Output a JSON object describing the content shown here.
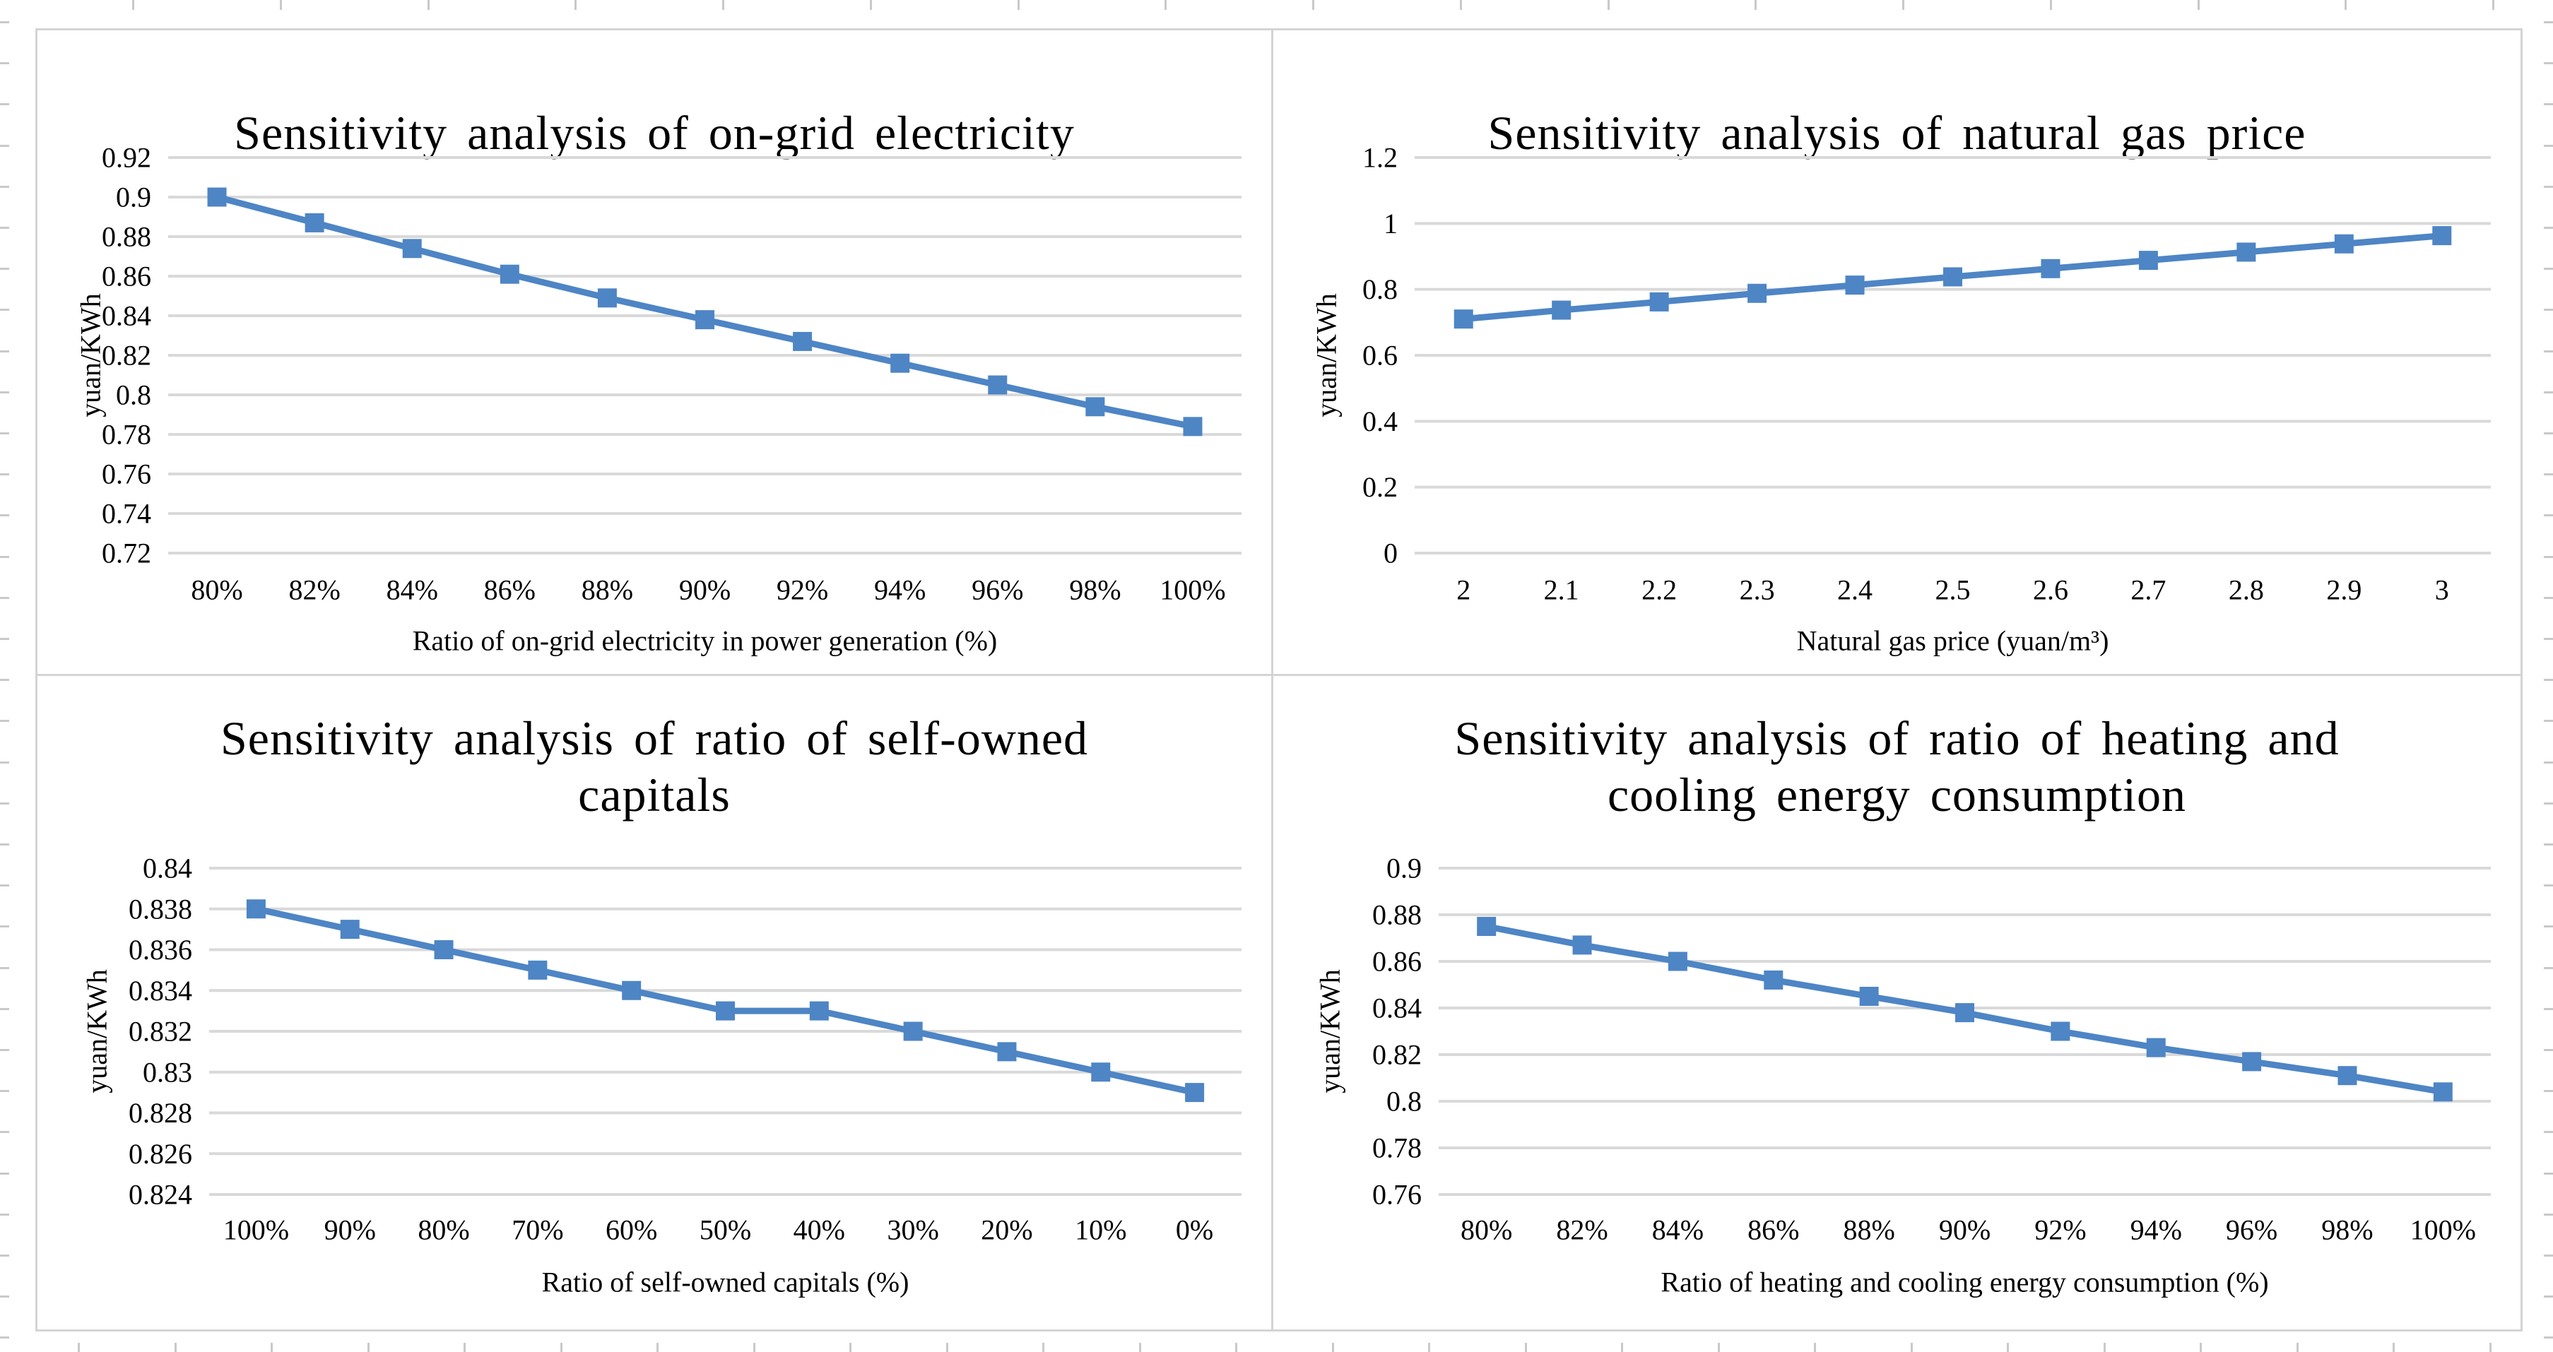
{
  "page": {
    "background": "#ffffff",
    "series_color": "#4e85c5",
    "gridline_color": "#d9d9d9",
    "panel_border_color": "#d4d4d4",
    "text_color": "#000000"
  },
  "chart_data": [
    {
      "type": "line",
      "title": "Sensitivity analysis of on-grid electricity",
      "title_lines": [
        "Sensitivity analysis of on-grid electricity"
      ],
      "xlabel": "Ratio of on-grid electricity in power generation (%)",
      "ylabel": "yuan/KWh",
      "categories": [
        "80%",
        "82%",
        "84%",
        "86%",
        "88%",
        "90%",
        "92%",
        "94%",
        "96%",
        "98%",
        "100%"
      ],
      "values": [
        0.9,
        0.887,
        0.874,
        0.861,
        0.849,
        0.838,
        0.827,
        0.816,
        0.805,
        0.794,
        0.784
      ],
      "ylim": [
        0.72,
        0.92
      ],
      "y_step": 0.02,
      "grid": "horizontal",
      "legend": "none",
      "marker": "square"
    },
    {
      "type": "line",
      "title": "Sensitivity analysis of natural gas price",
      "title_lines": [
        "Sensitivity analysis of natural gas price"
      ],
      "xlabel": "Natural gas price (yuan/m³)",
      "ylabel": "yuan/KWh",
      "categories": [
        "2",
        "2.1",
        "2.2",
        "2.3",
        "2.4",
        "2.5",
        "2.6",
        "2.7",
        "2.8",
        "2.9",
        "3"
      ],
      "values": [
        0.71,
        0.737,
        0.762,
        0.788,
        0.813,
        0.838,
        0.863,
        0.888,
        0.913,
        0.938,
        0.963
      ],
      "ylim": [
        0,
        1.2
      ],
      "y_step": 0.2,
      "grid": "horizontal",
      "legend": "none",
      "marker": "square"
    },
    {
      "type": "line",
      "title": "Sensitivity analysis of ratio of self-owned capitals",
      "title_lines": [
        "Sensitivity analysis of ratio of self-owned",
        "capitals"
      ],
      "xlabel": "Ratio of self-owned capitals (%)",
      "ylabel": "yuan/KWh",
      "categories": [
        "100%",
        "90%",
        "80%",
        "70%",
        "60%",
        "50%",
        "40%",
        "30%",
        "20%",
        "10%",
        "0%"
      ],
      "values": [
        0.838,
        0.837,
        0.836,
        0.835,
        0.834,
        0.833,
        0.833,
        0.832,
        0.831,
        0.83,
        0.829
      ],
      "ylim": [
        0.824,
        0.84
      ],
      "y_step": 0.002,
      "grid": "horizontal",
      "legend": "none",
      "marker": "square"
    },
    {
      "type": "line",
      "title": "Sensitivity analysis of ratio of heating and cooling energy consumption",
      "title_lines": [
        "Sensitivity analysis of ratio of heating and",
        "cooling energy consumption"
      ],
      "xlabel": "Ratio of heating and cooling energy consumption (%)",
      "ylabel": "yuan/KWh",
      "categories": [
        "80%",
        "82%",
        "84%",
        "86%",
        "88%",
        "90%",
        "92%",
        "94%",
        "96%",
        "98%",
        "100%"
      ],
      "values": [
        0.875,
        0.867,
        0.86,
        0.852,
        0.845,
        0.838,
        0.83,
        0.823,
        0.817,
        0.811,
        0.804
      ],
      "ylim": [
        0.76,
        0.9
      ],
      "y_step": 0.02,
      "grid": "horizontal",
      "legend": "none",
      "marker": "square"
    }
  ]
}
